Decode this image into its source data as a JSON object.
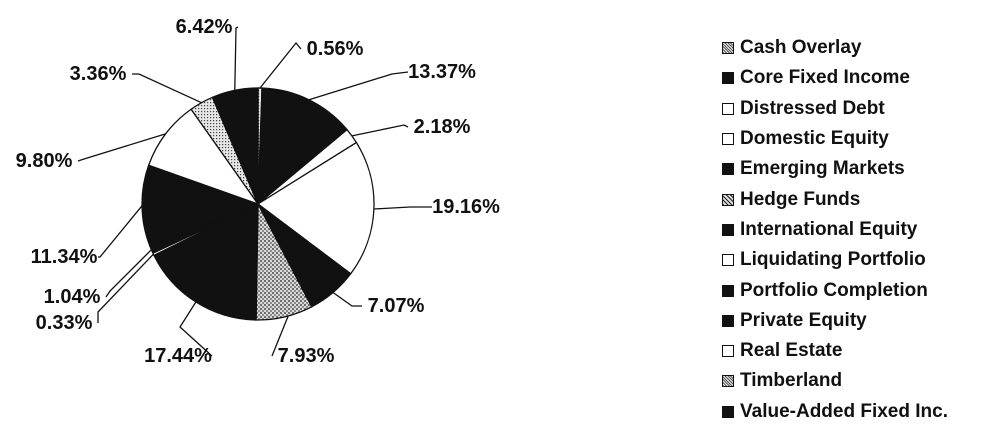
{
  "chart_data": {
    "type": "pie",
    "slices": [
      {
        "label": "Cash Overlay",
        "value": 0.56,
        "display": "0.56%",
        "color": "#c8c8c8",
        "pattern": "stipple"
      },
      {
        "label": "Core Fixed Income",
        "value": 13.37,
        "display": "13.37%",
        "color": "#111111",
        "pattern": "solid"
      },
      {
        "label": "Distressed Debt",
        "value": 2.18,
        "display": "2.18%",
        "color": "#ffffff",
        "pattern": "solid"
      },
      {
        "label": "Domestic Equity",
        "value": 19.16,
        "display": "19.16%",
        "color": "#ffffff",
        "pattern": "solid"
      },
      {
        "label": "Emerging Markets",
        "value": 7.07,
        "display": "7.07%",
        "color": "#111111",
        "pattern": "solid"
      },
      {
        "label": "Hedge Funds",
        "value": 7.93,
        "display": "7.93%",
        "color": "#9a9a9a",
        "pattern": "dots"
      },
      {
        "label": "International Equity",
        "value": 17.44,
        "display": "17.44%",
        "color": "#111111",
        "pattern": "solid"
      },
      {
        "label": "Liquidating Portfolio",
        "value": 0.33,
        "display": "0.33%",
        "color": "#ffffff",
        "pattern": "solid"
      },
      {
        "label": "Portfolio Completion",
        "value": 1.04,
        "display": "1.04%",
        "color": "#111111",
        "pattern": "solid"
      },
      {
        "label": "Private Equity",
        "value": 11.34,
        "display": "11.34%",
        "color": "#111111",
        "pattern": "solid"
      },
      {
        "label": "Real Estate",
        "value": 9.8,
        "display": "9.80%",
        "color": "#ffffff",
        "pattern": "solid"
      },
      {
        "label": "Timberland",
        "value": 3.36,
        "display": "3.36%",
        "color": "#bdbdbd",
        "pattern": "stipple"
      },
      {
        "label": "Value-Added Fixed Inc.",
        "value": 6.42,
        "display": "6.42%",
        "color": "#111111",
        "pattern": "solid"
      }
    ],
    "legend_position": "right"
  }
}
